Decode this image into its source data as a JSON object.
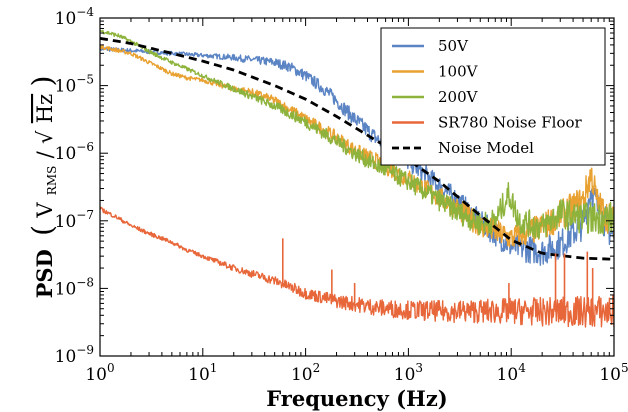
{
  "chart_data": {
    "type": "line",
    "title": "",
    "xlabel": "Frequency (Hz)",
    "ylabel": "PSD (V_RMS/√Hz)",
    "ylabel_parts": {
      "prefix": "PSD",
      "v": "V",
      "sub": "RMS",
      "slash": "/",
      "hz": "Hz"
    },
    "xscale": "log",
    "yscale": "log",
    "xlim": [
      1,
      100000
    ],
    "ylim": [
      1e-09,
      0.0001
    ],
    "grid": false,
    "legend_position": "top-right",
    "x_ticks": [
      {
        "value": 1,
        "base": "10",
        "exp": "0"
      },
      {
        "value": 10,
        "base": "10",
        "exp": "1"
      },
      {
        "value": 100,
        "base": "10",
        "exp": "2"
      },
      {
        "value": 1000,
        "base": "10",
        "exp": "3"
      },
      {
        "value": 10000,
        "base": "10",
        "exp": "4"
      },
      {
        "value": 100000,
        "base": "10",
        "exp": "5"
      }
    ],
    "y_ticks": [
      {
        "value": 1e-09,
        "base": "10",
        "exp": "−9"
      },
      {
        "value": 1e-08,
        "base": "10",
        "exp": "−8"
      },
      {
        "value": 1e-07,
        "base": "10",
        "exp": "−7"
      },
      {
        "value": 1e-06,
        "base": "10",
        "exp": "−6"
      },
      {
        "value": 1e-05,
        "base": "10",
        "exp": "−5"
      },
      {
        "value": 0.0001,
        "base": "10",
        "exp": "−4"
      }
    ],
    "series": [
      {
        "name": "50V",
        "color": "#5b84c4",
        "style": "solid",
        "x": [
          1,
          2,
          5,
          10,
          20,
          50,
          70,
          100,
          150,
          200,
          300,
          500,
          700,
          1000,
          2000,
          3000,
          5000,
          7000,
          10000,
          20000,
          30000,
          50000,
          60000,
          70000,
          100000
        ],
        "y": [
          3.5e-05,
          3.3e-05,
          3e-05,
          2.8e-05,
          2.6e-05,
          2.2e-05,
          1.9e-05,
          1.4e-05,
          9e-06,
          6e-06,
          3.2e-06,
          1.6e-06,
          1.1e-06,
          7.5e-07,
          3.3e-07,
          2e-07,
          9.5e-08,
          6.5e-08,
          4.2e-08,
          3.5e-08,
          4.5e-08,
          9e-08,
          3e-07,
          1.5e-07,
          5.5e-08
        ]
      },
      {
        "name": "100V",
        "color": "#e9a131",
        "style": "solid",
        "x": [
          1,
          2,
          3,
          5,
          7,
          10,
          20,
          30,
          50,
          100,
          200,
          300,
          500,
          1000,
          2000,
          3000,
          5000,
          10000,
          20000,
          30000,
          50000,
          60000,
          70000,
          100000
        ],
        "y": [
          3.8e-05,
          3e-05,
          2.2e-05,
          1.5e-05,
          1.3e-05,
          1.2e-05,
          9e-06,
          8e-06,
          6e-06,
          3.2e-06,
          1.7e-06,
          1.1e-06,
          7.5e-07,
          4.2e-07,
          2.2e-07,
          1.5e-07,
          8.5e-08,
          5.5e-08,
          8e-08,
          1.2e-07,
          2e-07,
          5e-07,
          1.7e-07,
          9e-08
        ]
      },
      {
        "name": "200V",
        "color": "#8db33c",
        "style": "solid",
        "x": [
          1,
          1.5,
          2,
          3,
          5,
          10,
          20,
          50,
          100,
          200,
          300,
          500,
          1000,
          2000,
          3000,
          5000,
          7000,
          9500,
          12000,
          20000,
          30000,
          50000,
          100000
        ],
        "y": [
          6.5e-05,
          5.5e-05,
          4.5e-05,
          3.2e-05,
          2.2e-05,
          1.4e-05,
          9e-06,
          5e-06,
          2.9e-06,
          1.5e-06,
          1e-06,
          6.5e-07,
          3.8e-07,
          2e-07,
          1.35e-07,
          9e-08,
          1e-07,
          2.5e-07,
          1e-07,
          8e-08,
          1.3e-07,
          1.1e-07,
          1.1e-07
        ]
      },
      {
        "name": "SR780 Noise Floor",
        "color": "#e8673a",
        "style": "solid",
        "x": [
          1,
          1.5,
          2,
          3,
          5,
          7,
          10,
          20,
          50,
          100,
          200,
          500,
          1000,
          2000,
          5000,
          10000,
          20000,
          50000,
          100000
        ],
        "y": [
          1.5e-07,
          1.1e-07,
          8.5e-08,
          6.5e-08,
          4.8e-08,
          3.7e-08,
          3e-08,
          2e-08,
          1.3e-08,
          8.5e-09,
          6.5e-09,
          5.2e-09,
          4.8e-09,
          4.6e-09,
          4.6e-09,
          4.6e-09,
          4.5e-09,
          4.5e-09,
          4.5e-09
        ]
      },
      {
        "name": "Noise Model",
        "color": "#000000",
        "style": "dashed",
        "x": [
          1,
          2,
          5,
          10,
          20,
          50,
          100,
          200,
          500,
          1000,
          2000,
          5000,
          10000,
          20000,
          50000,
          100000
        ],
        "y": [
          5e-05,
          4.2e-05,
          3e-05,
          2.3e-05,
          1.7e-05,
          1e-05,
          6.3e-06,
          3.5e-06,
          1.5e-06,
          8e-07,
          3.8e-07,
          1.2e-07,
          5.2e-08,
          3.3e-08,
          2.8e-08,
          2.7e-08
        ]
      }
    ],
    "spikes": [
      {
        "series": "SR780 Noise Floor",
        "x": 60,
        "y": 5.5e-08
      },
      {
        "series": "SR780 Noise Floor",
        "x": 180,
        "y": 1.9e-08
      },
      {
        "series": "SR780 Noise Floor",
        "x": 300,
        "y": 1.2e-08
      },
      {
        "series": "SR780 Noise Floor",
        "x": 9500,
        "y": 1.2e-08
      },
      {
        "series": "SR780 Noise Floor",
        "x": 27000,
        "y": 3.3e-08
      },
      {
        "series": "SR780 Noise Floor",
        "x": 33000,
        "y": 3.3e-08
      },
      {
        "series": "SR780 Noise Floor",
        "x": 55000,
        "y": 3.5e-08
      },
      {
        "series": "SR780 Noise Floor",
        "x": 62000,
        "y": 2e-08
      }
    ]
  }
}
